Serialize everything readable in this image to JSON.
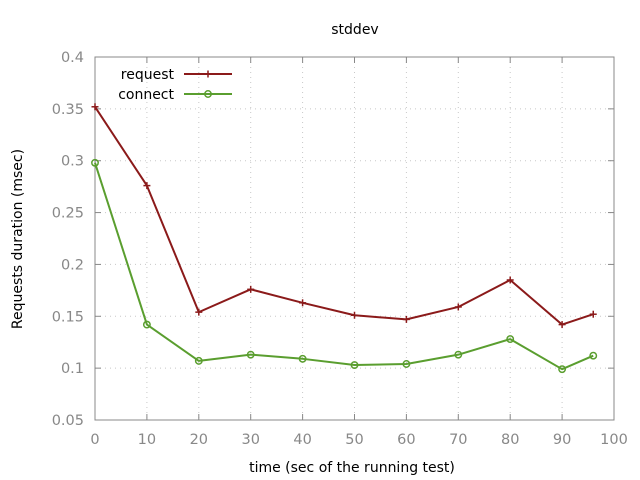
{
  "chart_data": {
    "type": "line",
    "title": "stddev",
    "xlabel": "time (sec of the running test)",
    "ylabel": "Requests duration (msec)",
    "xlim": [
      0,
      100
    ],
    "ylim": [
      0.05,
      0.4
    ],
    "xticks": [
      0,
      10,
      20,
      30,
      40,
      50,
      60,
      70,
      80,
      90,
      100
    ],
    "yticks": [
      0.05,
      0.1,
      0.15,
      0.2,
      0.25,
      0.3,
      0.35,
      0.4
    ],
    "xtick_labels": [
      "0",
      "10",
      "20",
      "30",
      "40",
      "50",
      "60",
      "70",
      "80",
      "90",
      "100"
    ],
    "ytick_labels": [
      "0.05",
      "0.1",
      "0.15",
      "0.2",
      "0.25",
      "0.3",
      "0.35",
      "0.4"
    ],
    "grid": true,
    "legend_position": "top-left",
    "series": [
      {
        "name": "request",
        "color": "#8b1a1a",
        "marker": "plus",
        "x": [
          0,
          10,
          20,
          30,
          40,
          50,
          60,
          70,
          80,
          90,
          96
        ],
        "y": [
          0.352,
          0.276,
          0.154,
          0.176,
          0.163,
          0.151,
          0.147,
          0.159,
          0.185,
          0.142,
          0.152
        ]
      },
      {
        "name": "connect",
        "color": "#5a9e2f",
        "marker": "circle",
        "x": [
          0,
          10,
          20,
          30,
          40,
          50,
          60,
          70,
          80,
          90,
          96
        ],
        "y": [
          0.298,
          0.142,
          0.107,
          0.113,
          0.109,
          0.103,
          0.104,
          0.113,
          0.128,
          0.099,
          0.112
        ]
      }
    ]
  }
}
